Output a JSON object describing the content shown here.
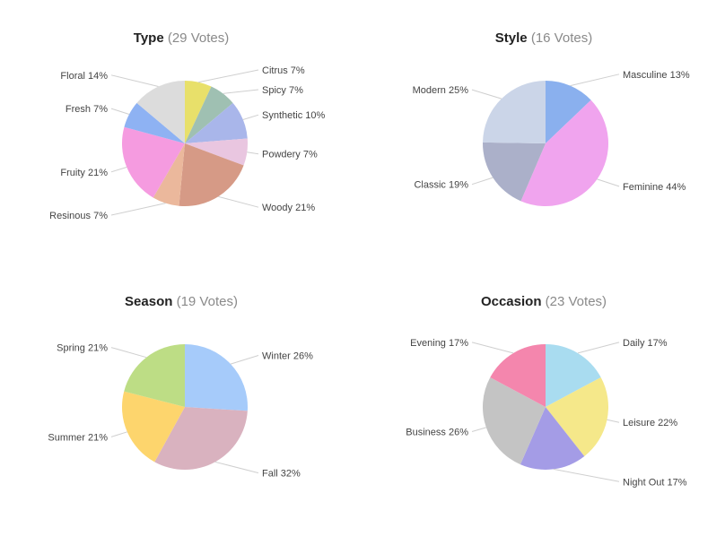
{
  "chart_data": [
    {
      "type": "pie",
      "title": "Type",
      "votes_label": "(29 Votes)",
      "slices": [
        {
          "label": "Citrus 7%",
          "value": 7,
          "color": "#e8e06a"
        },
        {
          "label": "Spicy 7%",
          "value": 7,
          "color": "#9fc0b2"
        },
        {
          "label": "Synthetic 10%",
          "value": 10,
          "color": "#a9b6ea"
        },
        {
          "label": "Powdery 7%",
          "value": 7,
          "color": "#e9c6e0"
        },
        {
          "label": "Woody 21%",
          "value": 21,
          "color": "#d69a86"
        },
        {
          "label": "Resinous 7%",
          "value": 7,
          "color": "#ebb89c"
        },
        {
          "label": "Fruity 21%",
          "value": 21,
          "color": "#f59be0"
        },
        {
          "label": "Fresh 7%",
          "value": 7,
          "color": "#8eb2f3"
        },
        {
          "label": "Floral 14%",
          "value": 14,
          "color": "#dcdcdc"
        }
      ]
    },
    {
      "type": "pie",
      "title": "Style",
      "votes_label": "(16 Votes)",
      "slices": [
        {
          "label": "Masculine 13%",
          "value": 13,
          "color": "#8ab0ee"
        },
        {
          "label": "Feminine 44%",
          "value": 44,
          "color": "#f0a4ee"
        },
        {
          "label": "Classic 19%",
          "value": 19,
          "color": "#abb0c9"
        },
        {
          "label": "Modern 25%",
          "value": 25,
          "color": "#cbd5e8"
        }
      ]
    },
    {
      "type": "pie",
      "title": "Season",
      "votes_label": "(19 Votes)",
      "slices": [
        {
          "label": "Winter 26%",
          "value": 26,
          "color": "#a6cbfa"
        },
        {
          "label": "Fall 32%",
          "value": 32,
          "color": "#d9b2bf"
        },
        {
          "label": "Summer 21%",
          "value": 21,
          "color": "#fdd56d"
        },
        {
          "label": "Spring 21%",
          "value": 21,
          "color": "#bddd85"
        }
      ]
    },
    {
      "type": "pie",
      "title": "Occasion",
      "votes_label": "(23 Votes)",
      "slices": [
        {
          "label": "Daily 17%",
          "value": 17,
          "color": "#a9dcf0"
        },
        {
          "label": "Leisure 22%",
          "value": 22,
          "color": "#f5e88a"
        },
        {
          "label": "Night Out 17%",
          "value": 17,
          "color": "#a49ce6"
        },
        {
          "label": "Business 26%",
          "value": 26,
          "color": "#c4c4c4"
        },
        {
          "label": "Evening 17%",
          "value": 17,
          "color": "#f486ad"
        }
      ]
    }
  ]
}
